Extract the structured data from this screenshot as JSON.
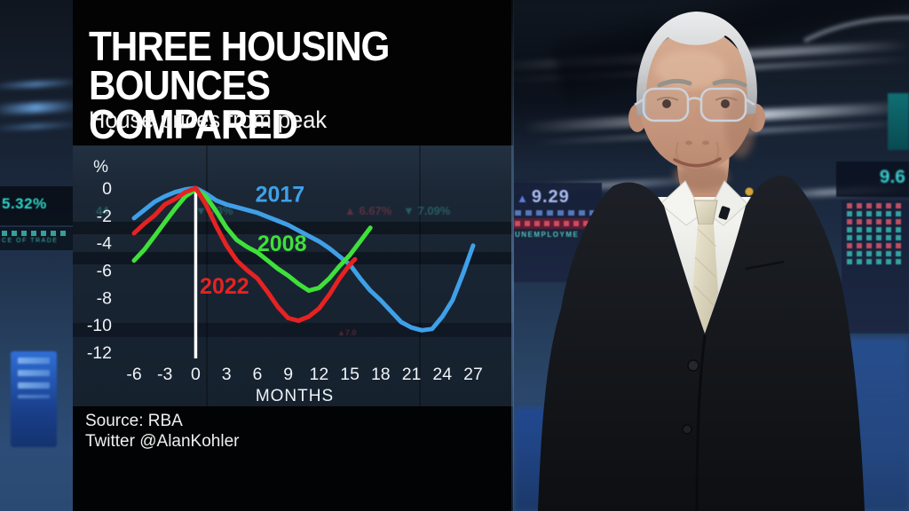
{
  "broadcast": {
    "title_line1": "THREE HOUSING",
    "title_line2": "BOUNCES COMPARED",
    "subtitle": "House prices from peak",
    "source_line1": "Source: RBA",
    "source_line2": "Twitter @AlanKohler"
  },
  "chart_data": {
    "type": "line",
    "title": "THREE HOUSING BOUNCES COMPARED",
    "subtitle": "House prices from peak",
    "ylabel": "%",
    "xlabel": "MONTHS",
    "x_ticks": [
      -6,
      -3,
      0,
      3,
      6,
      9,
      12,
      15,
      18,
      21,
      24,
      27
    ],
    "y_ticks": [
      0,
      -2,
      -4,
      -6,
      -8,
      -10,
      -12
    ],
    "xlim": [
      -6,
      27
    ],
    "ylim": [
      -12,
      0
    ],
    "grid": false,
    "peak_line_x": 0,
    "legend_position": "inline-labels",
    "series": [
      {
        "name": "2017",
        "color": "#3fa0e8",
        "label": {
          "x": 8.2,
          "y": -0.5
        },
        "points": [
          [
            -6,
            -2.2
          ],
          [
            -5,
            -1.6
          ],
          [
            -4,
            -1.0
          ],
          [
            -3,
            -0.6
          ],
          [
            -2,
            -0.3
          ],
          [
            -1,
            -0.1
          ],
          [
            0,
            0
          ],
          [
            1,
            -0.4
          ],
          [
            2,
            -0.9
          ],
          [
            3,
            -1.2
          ],
          [
            4,
            -1.4
          ],
          [
            5,
            -1.6
          ],
          [
            6,
            -1.8
          ],
          [
            7,
            -2.1
          ],
          [
            8,
            -2.4
          ],
          [
            9,
            -2.7
          ],
          [
            10,
            -3.1
          ],
          [
            11,
            -3.5
          ],
          [
            12,
            -3.9
          ],
          [
            13,
            -4.4
          ],
          [
            14,
            -5.0
          ],
          [
            15,
            -5.6
          ],
          [
            16,
            -6.6
          ],
          [
            17,
            -7.5
          ],
          [
            18,
            -8.2
          ],
          [
            19,
            -9.0
          ],
          [
            20,
            -9.8
          ],
          [
            21,
            -10.2
          ],
          [
            22,
            -10.4
          ],
          [
            23,
            -10.3
          ],
          [
            24,
            -9.4
          ],
          [
            25,
            -8.2
          ],
          [
            26,
            -6.3
          ],
          [
            27,
            -4.2
          ]
        ]
      },
      {
        "name": "2008",
        "color": "#3fe03a",
        "label": {
          "x": 8.4,
          "y": -4.1
        },
        "points": [
          [
            -6,
            -5.3
          ],
          [
            -5,
            -4.5
          ],
          [
            -4,
            -3.5
          ],
          [
            -3,
            -2.5
          ],
          [
            -2,
            -1.5
          ],
          [
            -1,
            -0.6
          ],
          [
            0,
            -0.1
          ],
          [
            1,
            -0.6
          ],
          [
            2,
            -1.7
          ],
          [
            3,
            -2.9
          ],
          [
            4,
            -3.8
          ],
          [
            5,
            -4.3
          ],
          [
            6,
            -4.7
          ],
          [
            7,
            -5.3
          ],
          [
            8,
            -5.9
          ],
          [
            9,
            -6.4
          ],
          [
            10,
            -7.0
          ],
          [
            11,
            -7.5
          ],
          [
            12,
            -7.3
          ],
          [
            13,
            -6.6
          ],
          [
            14,
            -5.7
          ],
          [
            15,
            -4.9
          ],
          [
            16,
            -3.9
          ],
          [
            17,
            -2.9
          ]
        ]
      },
      {
        "name": "2022",
        "color": "#e62222",
        "label": {
          "x": 2.8,
          "y": -7.2
        },
        "points": [
          [
            -6,
            -3.3
          ],
          [
            -5,
            -2.6
          ],
          [
            -4,
            -2.0
          ],
          [
            -3,
            -1.2
          ],
          [
            -2,
            -0.8
          ],
          [
            -1,
            -0.3
          ],
          [
            0,
            0
          ],
          [
            1,
            -1.2
          ],
          [
            2,
            -2.8
          ],
          [
            3,
            -4.2
          ],
          [
            4,
            -5.3
          ],
          [
            5,
            -6.0
          ],
          [
            6,
            -6.6
          ],
          [
            7,
            -7.6
          ],
          [
            8,
            -8.7
          ],
          [
            9,
            -9.5
          ],
          [
            10,
            -9.7
          ],
          [
            11,
            -9.4
          ],
          [
            12,
            -8.8
          ],
          [
            13,
            -7.8
          ],
          [
            14,
            -6.6
          ],
          [
            15,
            -5.6
          ],
          [
            15.5,
            -5.2
          ]
        ]
      }
    ]
  },
  "studio": {
    "left_screen": {
      "value": "5.32%",
      "label": "CE OF TRADE"
    },
    "unemployment_board": {
      "arrow": "▲",
      "value": "9.29",
      "label": "UNEMPLOYME"
    },
    "right_screen_value": "9.6",
    "chart_bg_tickers": [
      {
        "text": "44"
      },
      {
        "text": "▼ 73%"
      },
      {
        "text": "▲ 6.67%"
      },
      {
        "text": "▼ 7.09%"
      },
      {
        "text": "▲7.0"
      }
    ]
  },
  "colors": {
    "series_2017": "#3fa0e8",
    "series_2008": "#3fe03a",
    "series_2022": "#e62222",
    "teal_ticker": "#2fd4c6",
    "red_ticker": "#e8485a",
    "peak_line": "#ffffff",
    "panel_black": "#030303"
  }
}
